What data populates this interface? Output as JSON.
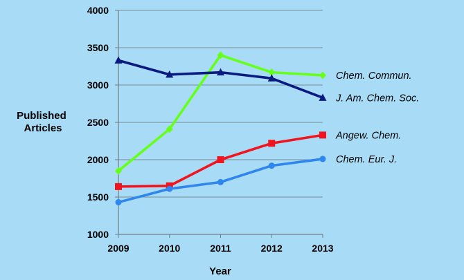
{
  "chart_data": {
    "type": "line",
    "title": "",
    "xlabel": "Year",
    "ylabel": "Published Articles",
    "ylabel_lines": [
      "Published",
      "Articles"
    ],
    "x": [
      2009,
      2010,
      2011,
      2012,
      2013
    ],
    "ylim": [
      1000,
      4000
    ],
    "yticks": [
      1000,
      1500,
      2000,
      2500,
      3000,
      3500,
      4000
    ],
    "grid": true,
    "legend": "inline-right",
    "series": [
      {
        "name": "Chem. Commun.",
        "color": "#66ff1a",
        "marker": "diamond",
        "values": [
          1850,
          2410,
          3400,
          3170,
          3130
        ]
      },
      {
        "name": "J. Am. Chem. Soc.",
        "color": "#0a1a80",
        "marker": "triangle",
        "values": [
          3330,
          3140,
          3170,
          3090,
          2830
        ]
      },
      {
        "name": "Angew. Chem.",
        "color": "#f0141e",
        "marker": "square",
        "values": [
          1640,
          1650,
          2000,
          2220,
          2330
        ]
      },
      {
        "name": "Chem. Eur. J.",
        "color": "#2f86ee",
        "marker": "circle",
        "values": [
          1430,
          1610,
          1700,
          1920,
          2010
        ]
      }
    ]
  }
}
